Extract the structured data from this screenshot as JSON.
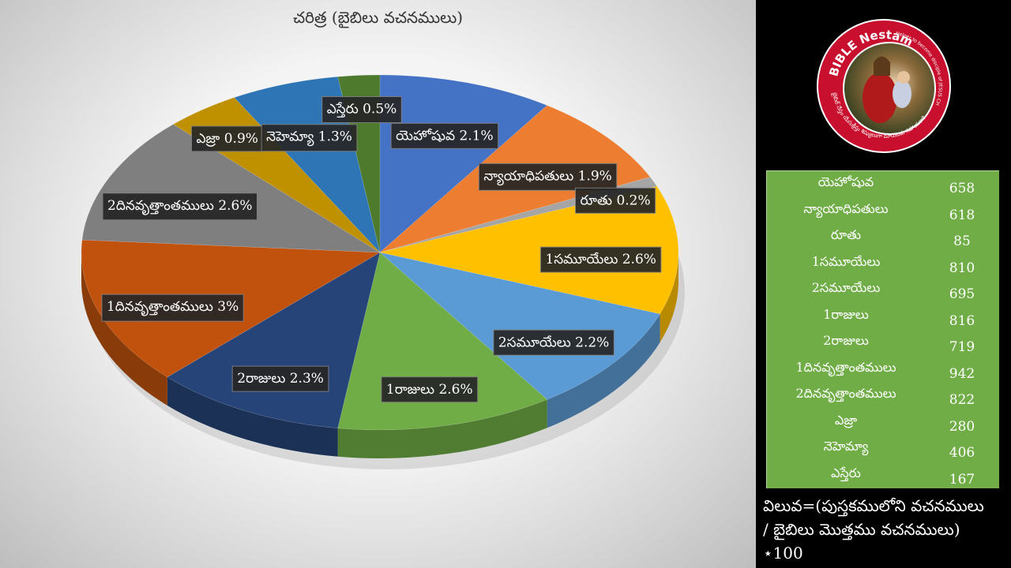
{
  "chart_data": {
    "type": "pie",
    "title": "చరిత్ర (బైబిలు వచనములు)",
    "slices": [
      {
        "label": "యెహోషువ",
        "value": 2.1,
        "color": "#4472c4",
        "label_text": "యెహోషువ 2.1%"
      },
      {
        "label": "న్యాయాధిపతులు",
        "value": 1.9,
        "color": "#ed7d31",
        "label_text": "న్యాయాధిపతులు 1.9%"
      },
      {
        "label": "రూతు",
        "value": 0.2,
        "color": "#a5a5a5",
        "label_text": "రూతు 0.2%"
      },
      {
        "label": "1సమూయేలు",
        "value": 2.6,
        "color": "#ffc000",
        "label_text": "1సమూయేలు 2.6%"
      },
      {
        "label": "2సమూయేలు",
        "value": 2.2,
        "color": "#5b9bd5",
        "label_text": "2సమూయేలు 2.2%"
      },
      {
        "label": "1రాజులు",
        "value": 2.6,
        "color": "#70ad47",
        "label_text": "1రాజులు 2.6%"
      },
      {
        "label": "2రాజులు",
        "value": 2.3,
        "color": "#264478",
        "label_text": "2రాజులు 2.3%"
      },
      {
        "label": "1దినవృత్తాంతములు",
        "value": 3.0,
        "color": "#c0520e",
        "label_text": "1దినవృత్తాంతములు 3%"
      },
      {
        "label": "2దినవృత్తాంతములు",
        "value": 2.6,
        "color": "#7f7f7f",
        "label_text": "2దినవృత్తాంతములు 2.6%"
      },
      {
        "label": "ఎజ్రా",
        "value": 0.9,
        "color": "#bf9000",
        "label_text": "ఎజ్రా 0.9%"
      },
      {
        "label": "నెహెమ్యా",
        "value": 1.3,
        "color": "#2e75b6",
        "label_text": "నెహెమ్యా 1.3%"
      },
      {
        "label": "ఎస్తేరు",
        "value": 0.5,
        "color": "#4e7a2e",
        "label_text": "ఎస్తేరు 0.5%"
      }
    ],
    "legend": "none"
  },
  "table": {
    "rows": [
      {
        "name": "యెహోషువ",
        "value": "658"
      },
      {
        "name": "న్యాయాధిపతులు",
        "value": "618"
      },
      {
        "name": "రూతు",
        "value": "85"
      },
      {
        "name": "1సమూయేలు",
        "value": "810"
      },
      {
        "name": "2సమూయేలు",
        "value": "695"
      },
      {
        "name": "1రాజులు",
        "value": "816"
      },
      {
        "name": "2రాజులు",
        "value": "719"
      },
      {
        "name": "1దినవృత్తాంతములు",
        "value": "942"
      },
      {
        "name": "2దినవృత్తాంతములు",
        "value": "822"
      },
      {
        "name": "ఎజ్రా",
        "value": "280"
      },
      {
        "name": "నెహెమ్యా",
        "value": "406"
      },
      {
        "name": "ఎస్తేరు",
        "value": "167"
      }
    ]
  },
  "formula": {
    "line1": "విలువ=(పుస్తకములోని వచనములు",
    "line2": "/ బైబిలు మొత్తము వచనములు)",
    "line3": "⋆100"
  },
  "logo": {
    "top_text": "BIBLE Nestam",
    "side_text": "Helper to become disciple of JESUS CHRIST",
    "telugu_text": "బైబిల్ నేస్తం యేసుక్రీస్తు శిష్యులుగా మారుటకు సహాయకారి",
    "ring_color": "#c8102e"
  }
}
